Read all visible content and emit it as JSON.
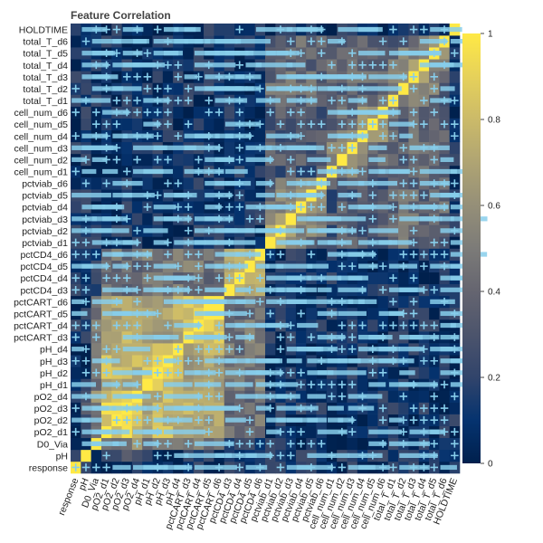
{
  "chart_data": {
    "type": "heatmap",
    "title": "Feature Correlation",
    "xlabel": "",
    "ylabel": "",
    "colorbar": {
      "range": [
        0,
        1
      ],
      "ticks": [
        0,
        0.2,
        0.4,
        0.6,
        0.8,
        1
      ],
      "tick_labels": [
        "0",
        "0.2",
        "0.4",
        "0.6",
        "0.8",
        "1"
      ],
      "colormap": "cividis"
    },
    "colors": {
      "low": "#00204d",
      "mid": "#7c7b78",
      "high": "#ffe945",
      "glyph": "#87ceeb"
    },
    "variables": [
      "response",
      "pH",
      "D0_Via",
      "pO2_d1",
      "pO2_d2",
      "pO2_d3",
      "pO2_d4",
      "pH_d1",
      "pH_d2",
      "pH_d3",
      "pH_d4",
      "pctCART_d3",
      "pctCART_d4",
      "pctCART_d5",
      "pctCART_d6",
      "pctCD4_d3",
      "pctCD4_d4",
      "pctCD4_d5",
      "pctCD4_d6",
      "pctviab_d1",
      "pctviab_d2",
      "pctviab_d3",
      "pctviab_d4",
      "pctviab_d5",
      "pctviab_d6",
      "cell_num_d1",
      "cell_num_d2",
      "cell_num_d3",
      "cell_num_d4",
      "cell_num_d5",
      "cell_num_d6",
      "total_T_d1",
      "total_T_d2",
      "total_T_d3",
      "total_T_d4",
      "total_T_d5",
      "total_T_d6",
      "HOLDTIME"
    ],
    "groups": [
      {
        "name": "response",
        "start": 0,
        "end": 0
      },
      {
        "name": "pH",
        "start": 1,
        "end": 1
      },
      {
        "name": "D0_Via",
        "start": 2,
        "end": 2
      },
      {
        "name": "pO2",
        "start": 3,
        "end": 6
      },
      {
        "name": "pH_d",
        "start": 7,
        "end": 10
      },
      {
        "name": "pctCART",
        "start": 11,
        "end": 14
      },
      {
        "name": "pctCD4",
        "start": 15,
        "end": 18
      },
      {
        "name": "pctviab",
        "start": 19,
        "end": 24
      },
      {
        "name": "cell_num",
        "start": 25,
        "end": 30
      },
      {
        "name": "total_T",
        "start": 31,
        "end": 36
      },
      {
        "name": "HOLDTIME",
        "start": 37,
        "end": 37
      }
    ],
    "block_correlations": [
      {
        "a": "pO2",
        "b": "pO2",
        "value": 0.85
      },
      {
        "a": "pO2",
        "b": "pH_d",
        "value": 0.75
      },
      {
        "a": "pO2",
        "b": "pctCART",
        "value": 0.7
      },
      {
        "a": "pH_d",
        "b": "pH_d",
        "value": 0.8
      },
      {
        "a": "pH_d",
        "b": "pctCART",
        "value": 0.7
      },
      {
        "a": "pctCART",
        "b": "pctCART",
        "value": 0.85
      },
      {
        "a": "pctCD4",
        "b": "pctCD4",
        "value": 0.82
      },
      {
        "a": "pctCD4",
        "b": "pctCART",
        "value": 0.45
      },
      {
        "a": "pctCD4",
        "b": "pO2",
        "value": 0.45
      },
      {
        "a": "pctCD4",
        "b": "pH_d",
        "value": 0.45
      },
      {
        "a": "pctviab",
        "b": "pctviab",
        "value": 0.6
      },
      {
        "a": "cell_num",
        "b": "cell_num",
        "value": 0.55
      },
      {
        "a": "total_T",
        "b": "total_T",
        "value": 0.55
      },
      {
        "a": "pctviab",
        "b": "total_T",
        "value": 0.4
      },
      {
        "a": "cell_num",
        "b": "total_T",
        "value": 0.4
      },
      {
        "a": "pctviab",
        "b": "cell_num",
        "value": 0.3
      },
      {
        "a": "D0_Via",
        "b": "pO2",
        "value": 0.55
      },
      {
        "a": "D0_Via",
        "b": "pH_d",
        "value": 0.5
      },
      {
        "a": "D0_Via",
        "b": "pctCART",
        "value": 0.45
      },
      {
        "a": "pH",
        "b": "pO2",
        "value": 0.3
      }
    ],
    "diagonal": 1.0,
    "grid": true,
    "legend": "colorbar-right"
  }
}
